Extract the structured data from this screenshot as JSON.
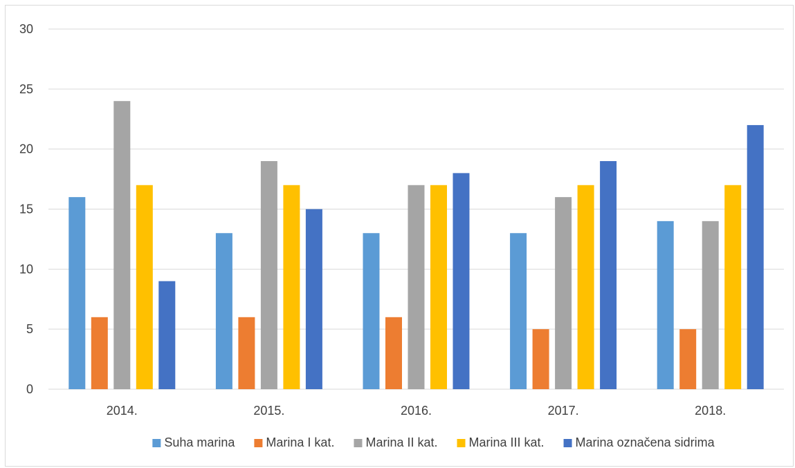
{
  "chart_data": {
    "type": "bar",
    "categories": [
      "2014.",
      "2015.",
      "2016.",
      "2017.",
      "2018."
    ],
    "series": [
      {
        "name": "Suha marina",
        "color": "#5b9bd5",
        "values": [
          16,
          13,
          13,
          13,
          14
        ]
      },
      {
        "name": "Marina I kat.",
        "color": "#ed7d31",
        "values": [
          6,
          6,
          6,
          5,
          5
        ]
      },
      {
        "name": "Marina II kat.",
        "color": "#a5a5a5",
        "values": [
          24,
          19,
          17,
          16,
          14
        ]
      },
      {
        "name": "Marina III kat.",
        "color": "#ffc000",
        "values": [
          17,
          17,
          17,
          17,
          17
        ]
      },
      {
        "name": "Marina označena sidrima",
        "color": "#4472c4",
        "values": [
          9,
          15,
          18,
          19,
          22
        ]
      }
    ],
    "yticks": [
      "0",
      "5",
      "10",
      "15",
      "20",
      "25",
      "30"
    ],
    "ylim": [
      0,
      30
    ],
    "title": "",
    "xlabel": "",
    "ylabel": "",
    "grid": true,
    "legend_position": "bottom",
    "gridline_color": "#d9d9d9"
  }
}
